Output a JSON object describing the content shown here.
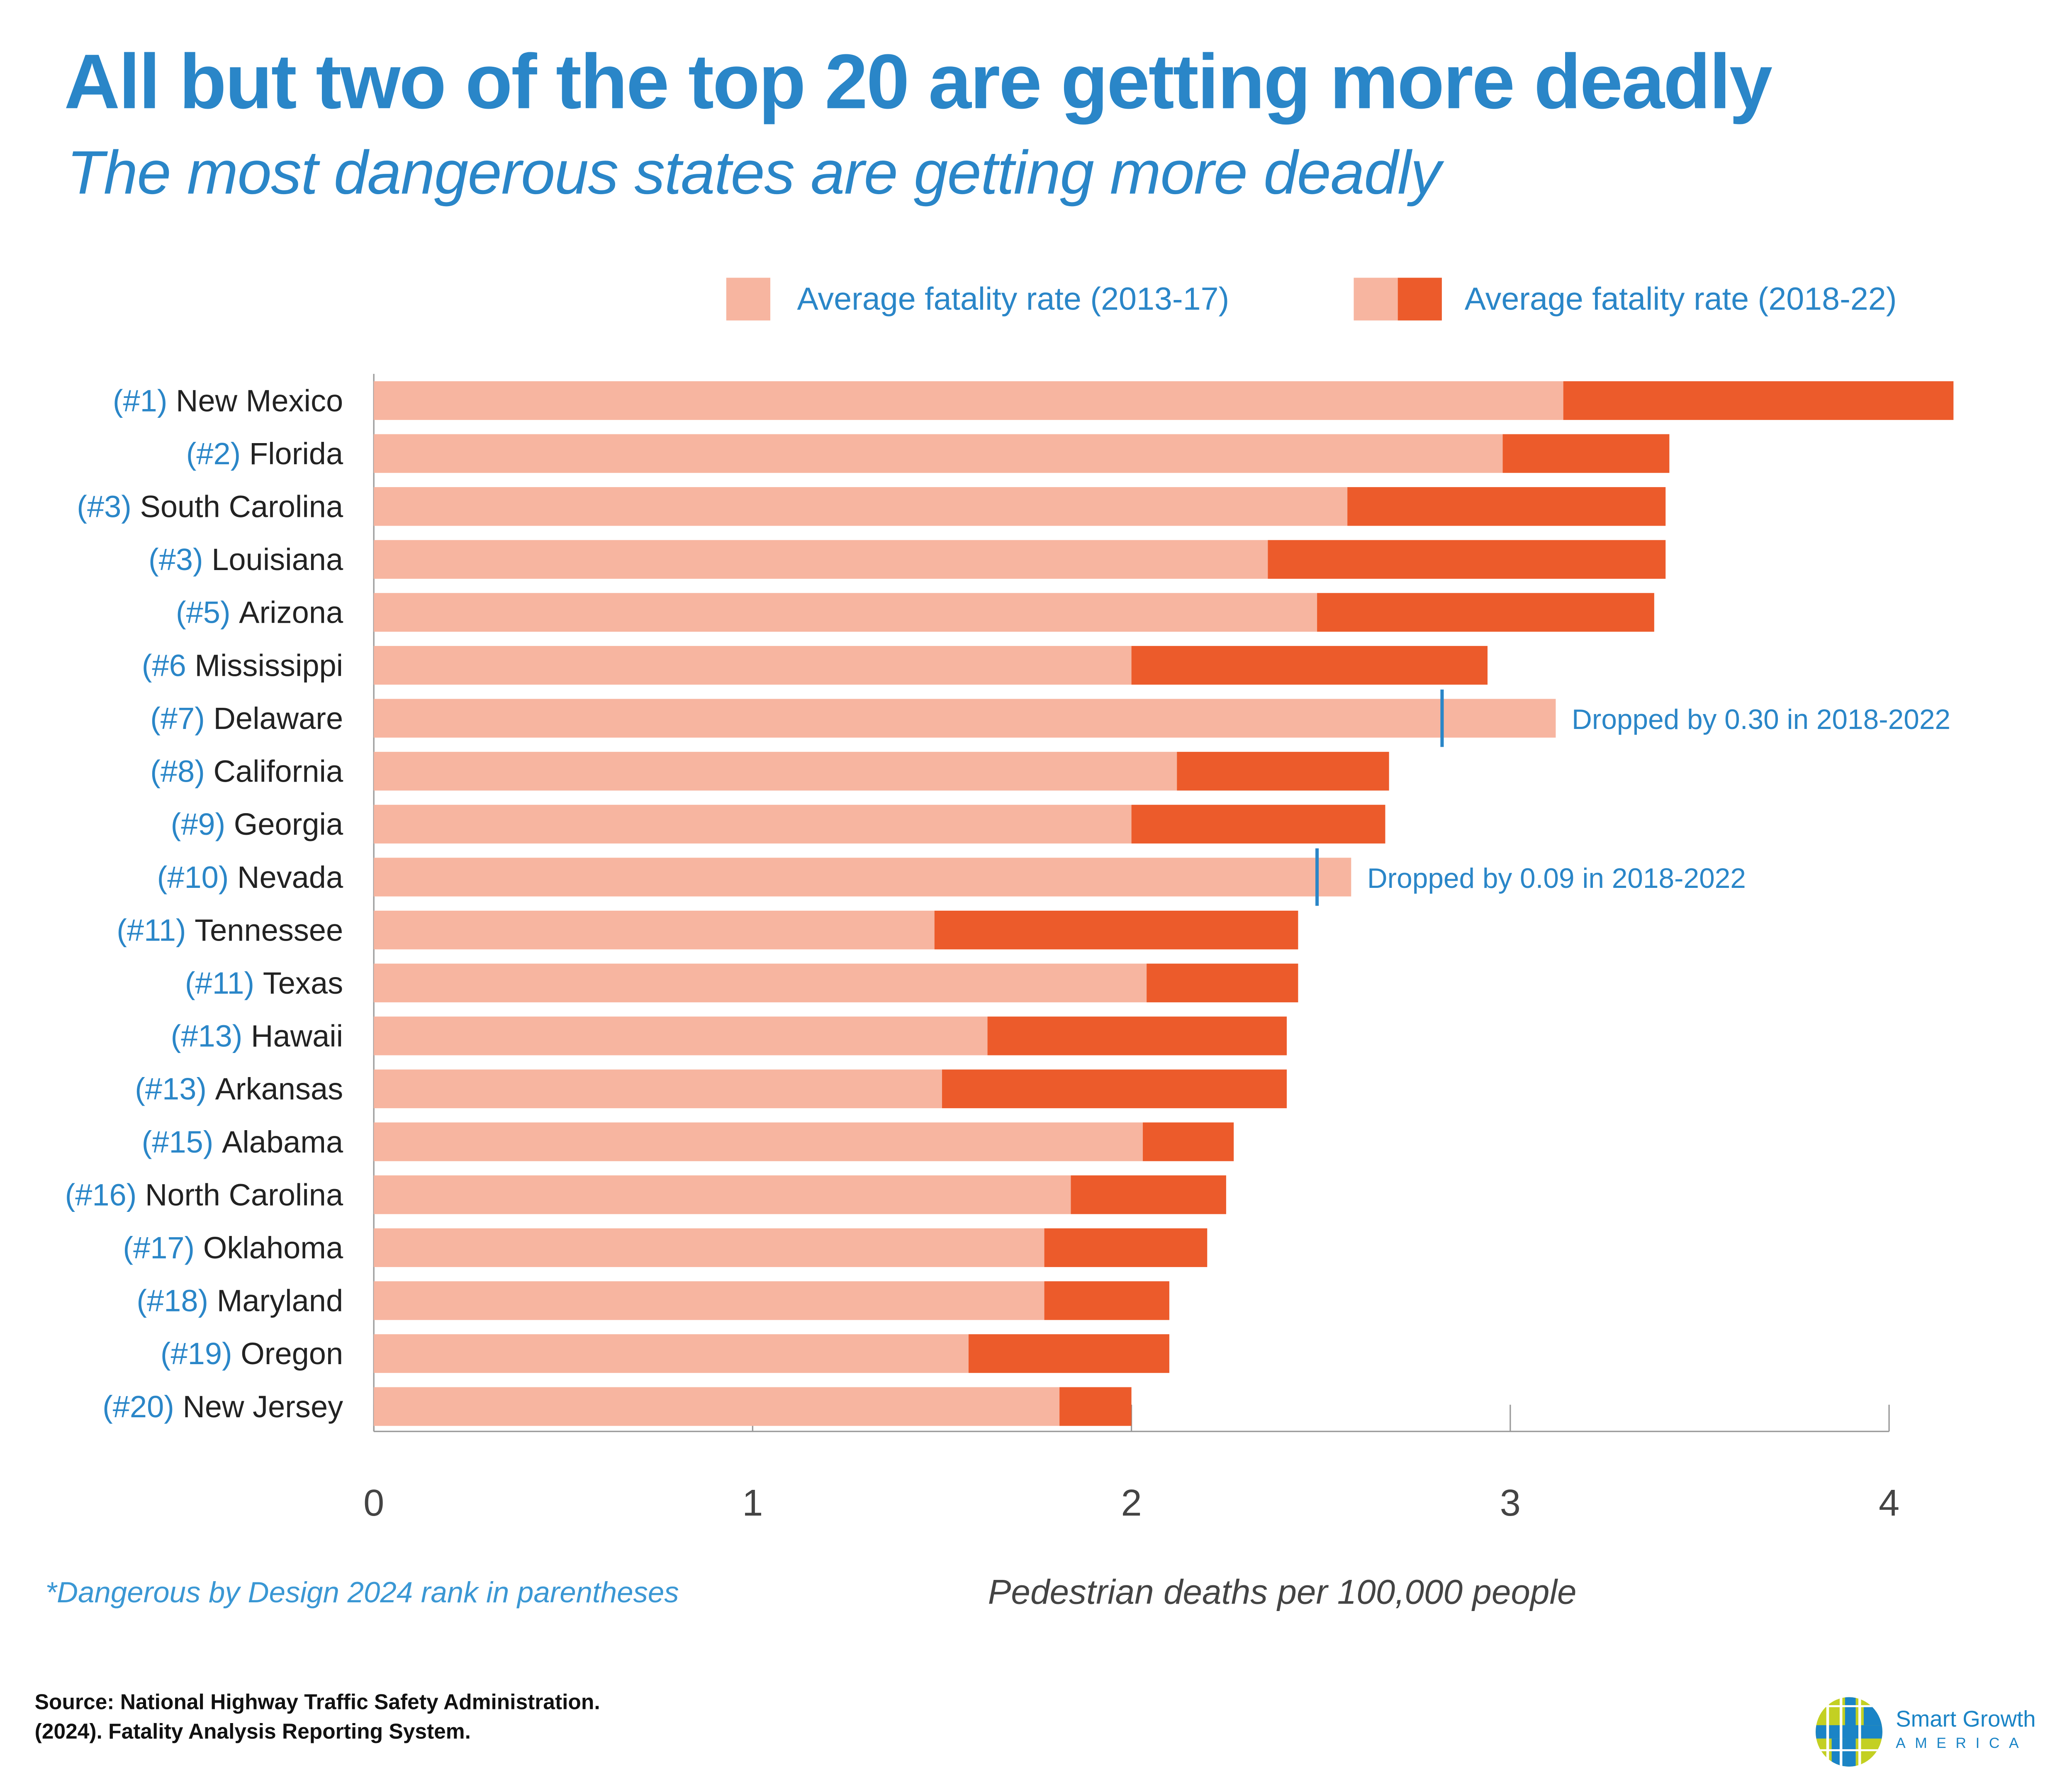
{
  "title": "All but two of the top 20 are getting more deadly",
  "subtitle": "The most dangerous states are getting more deadly",
  "note": "*Dangerous by Design 2024 rank in parentheses",
  "source_line1": "Source: National Highway Traffic Safety Administration.",
  "source_line2": "(2024). Fatality Analysis Reporting System.",
  "logo": {
    "line1": "Smart Growth",
    "line2": "AMERICA"
  },
  "colors": {
    "light": "#f7b5a0",
    "dark": "#ec5b2b",
    "blue": "#2a86c8",
    "logo_green": "#c3d022"
  },
  "chart_data": {
    "type": "bar",
    "orientation": "horizontal",
    "stacked_overlay": true,
    "xlabel": "Pedestrian deaths per 100,000 people",
    "xlim": [
      0,
      4
    ],
    "xticks": [
      "0",
      "1",
      "2",
      "3",
      "4"
    ],
    "legend": [
      "Average fatality rate (2013-17)",
      "Average fatality rate (2018-22)"
    ],
    "legend_position": "top-right",
    "categories": [
      {
        "rank": "(#1)",
        "name": "New Mexico"
      },
      {
        "rank": "(#2)",
        "name": "Florida"
      },
      {
        "rank": "(#3)",
        "name": "South Carolina"
      },
      {
        "rank": "(#3)",
        "name": "Louisiana"
      },
      {
        "rank": "(#5)",
        "name": "Arizona"
      },
      {
        "rank": "(#6",
        "name": "Mississippi"
      },
      {
        "rank": "(#7)",
        "name": "Delaware"
      },
      {
        "rank": "(#8)",
        "name": "California"
      },
      {
        "rank": "(#9)",
        "name": "Georgia"
      },
      {
        "rank": "(#10)",
        "name": "Nevada"
      },
      {
        "rank": "(#11)",
        "name": "Tennessee"
      },
      {
        "rank": "(#11)",
        "name": "Texas"
      },
      {
        "rank": "(#13)",
        "name": "Hawaii"
      },
      {
        "rank": "(#13)",
        "name": "Arkansas"
      },
      {
        "rank": "(#15)",
        "name": "Alabama"
      },
      {
        "rank": "(#16)",
        "name": "North Carolina"
      },
      {
        "rank": "(#17)",
        "name": "Oklahoma"
      },
      {
        "rank": "(#18)",
        "name": "Maryland"
      },
      {
        "rank": "(#19)",
        "name": "Oregon"
      },
      {
        "rank": "(#20)",
        "name": "New Jersey"
      }
    ],
    "series": [
      {
        "name": "Average fatality rate (2013-17)",
        "values": [
          3.14,
          2.98,
          2.57,
          2.36,
          2.49,
          2.0,
          3.12,
          2.12,
          2.0,
          2.58,
          1.48,
          2.04,
          1.62,
          1.5,
          2.03,
          1.84,
          1.77,
          1.77,
          1.57,
          1.81
        ]
      },
      {
        "name": "Average fatality rate (2018-22)",
        "values": [
          4.17,
          3.42,
          3.41,
          3.41,
          3.38,
          2.94,
          2.82,
          2.68,
          2.67,
          2.49,
          2.44,
          2.44,
          2.41,
          2.41,
          2.27,
          2.25,
          2.2,
          2.1,
          2.1,
          2.0
        ]
      }
    ],
    "annotations": [
      {
        "category": "Delaware",
        "text": "Dropped by 0.30 in 2018-2022"
      },
      {
        "category": "Nevada",
        "text": "Dropped by 0.09 in 2018-2022"
      }
    ]
  }
}
